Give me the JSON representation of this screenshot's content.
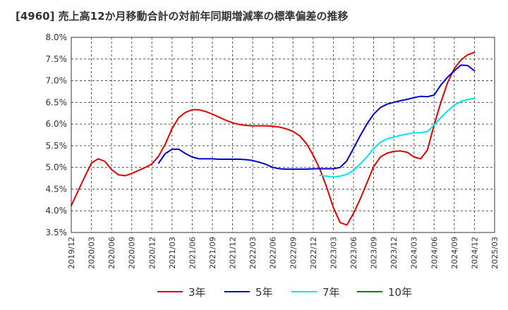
{
  "title": "[4960]  売上高12か月移動合計の対前年同期増減率の標準偏差の推移",
  "chart_data": {
    "type": "line",
    "title": "[4960]  売上高12か月移動合計の対前年同期増減率の標準偏差の推移",
    "xlabel": "",
    "ylabel": "",
    "x_ticks": [
      "2019/12",
      "2020/03",
      "2020/06",
      "2020/09",
      "2020/12",
      "2021/03",
      "2021/06",
      "2021/09",
      "2021/12",
      "2022/03",
      "2022/06",
      "2022/09",
      "2022/12",
      "2023/03",
      "2023/06",
      "2023/09",
      "2023/12",
      "2024/03",
      "2024/06",
      "2024/09",
      "2024/12",
      "2025/03"
    ],
    "y_ticks": [
      "3.5%",
      "4.0%",
      "4.5%",
      "5.0%",
      "5.5%",
      "6.0%",
      "6.5%",
      "7.0%",
      "7.5%",
      "8.0%"
    ],
    "ylim": [
      3.5,
      8.0
    ],
    "grid": true,
    "legend_position": "bottom",
    "series": [
      {
        "name": "3年",
        "color": "#dd0000",
        "x": [
          "2019/12",
          "2020/01",
          "2020/02",
          "2020/03",
          "2020/04",
          "2020/05",
          "2020/06",
          "2020/07",
          "2020/08",
          "2020/09",
          "2020/10",
          "2020/11",
          "2020/12",
          "2021/01",
          "2021/02",
          "2021/03",
          "2021/04",
          "2021/05",
          "2021/06",
          "2021/07",
          "2021/08",
          "2021/09",
          "2021/10",
          "2021/11",
          "2021/12",
          "2022/01",
          "2022/02",
          "2022/03",
          "2022/04",
          "2022/05",
          "2022/06",
          "2022/07",
          "2022/08",
          "2022/09",
          "2022/10",
          "2022/11",
          "2022/12",
          "2023/01",
          "2023/02",
          "2023/03",
          "2023/04",
          "2023/05",
          "2023/06",
          "2023/07",
          "2023/08",
          "2023/09",
          "2023/10",
          "2023/11",
          "2023/12",
          "2024/01",
          "2024/02",
          "2024/03",
          "2024/04",
          "2024/05",
          "2024/06",
          "2024/07",
          "2024/08",
          "2024/09",
          "2024/10",
          "2024/11",
          "2024/12"
        ],
        "values": [
          4.12,
          4.45,
          4.78,
          5.1,
          5.2,
          5.14,
          4.95,
          4.83,
          4.81,
          4.86,
          4.93,
          5.0,
          5.08,
          5.26,
          5.54,
          5.9,
          6.15,
          6.27,
          6.33,
          6.33,
          6.29,
          6.23,
          6.16,
          6.09,
          6.03,
          5.99,
          5.97,
          5.96,
          5.96,
          5.96,
          5.95,
          5.93,
          5.89,
          5.83,
          5.73,
          5.55,
          5.28,
          4.96,
          4.55,
          4.08,
          3.73,
          3.67,
          3.94,
          4.27,
          4.64,
          5.02,
          5.24,
          5.33,
          5.37,
          5.38,
          5.35,
          5.24,
          5.2,
          5.4,
          5.98,
          6.5,
          6.95,
          7.28,
          7.48,
          7.6,
          7.65
        ]
      },
      {
        "name": "5年",
        "color": "#0000cc",
        "x": [
          "2021/01",
          "2021/02",
          "2021/03",
          "2021/04",
          "2021/05",
          "2021/06",
          "2021/07",
          "2021/08",
          "2021/09",
          "2021/10",
          "2021/11",
          "2021/12",
          "2022/01",
          "2022/02",
          "2022/03",
          "2022/04",
          "2022/05",
          "2022/06",
          "2022/07",
          "2022/08",
          "2022/09",
          "2022/10",
          "2022/11",
          "2022/12",
          "2023/01",
          "2023/02",
          "2023/03",
          "2023/04",
          "2023/05",
          "2023/06",
          "2023/07",
          "2023/08",
          "2023/09",
          "2023/10",
          "2023/11",
          "2023/12",
          "2024/01",
          "2024/02",
          "2024/03",
          "2024/04",
          "2024/05",
          "2024/06",
          "2024/07",
          "2024/08",
          "2024/09",
          "2024/10",
          "2024/11",
          "2024/12"
        ],
        "values": [
          5.1,
          5.32,
          5.42,
          5.42,
          5.32,
          5.24,
          5.2,
          5.2,
          5.2,
          5.19,
          5.19,
          5.19,
          5.19,
          5.18,
          5.16,
          5.12,
          5.07,
          5.0,
          4.97,
          4.96,
          4.96,
          4.96,
          4.96,
          4.97,
          4.97,
          4.97,
          4.97,
          5.0,
          5.15,
          5.44,
          5.73,
          6.0,
          6.23,
          6.38,
          6.46,
          6.5,
          6.54,
          6.57,
          6.61,
          6.64,
          6.63,
          6.67,
          6.9,
          7.08,
          7.23,
          7.36,
          7.35,
          7.23
        ]
      },
      {
        "name": "7年",
        "color": "#00e5ee",
        "x": [
          "2023/01",
          "2023/02",
          "2023/03",
          "2023/04",
          "2023/05",
          "2023/06",
          "2023/07",
          "2023/08",
          "2023/09",
          "2023/10",
          "2023/11",
          "2023/12",
          "2024/01",
          "2024/02",
          "2024/03",
          "2024/04",
          "2024/05",
          "2024/06",
          "2024/07",
          "2024/08",
          "2024/09",
          "2024/10",
          "2024/11",
          "2024/12"
        ],
        "values": [
          4.82,
          4.8,
          4.78,
          4.8,
          4.84,
          4.93,
          5.08,
          5.24,
          5.44,
          5.58,
          5.66,
          5.7,
          5.74,
          5.77,
          5.8,
          5.8,
          5.83,
          5.98,
          6.15,
          6.3,
          6.44,
          6.52,
          6.57,
          6.59
        ]
      },
      {
        "name": "10年",
        "color": "#008000",
        "x": [],
        "values": []
      }
    ]
  }
}
